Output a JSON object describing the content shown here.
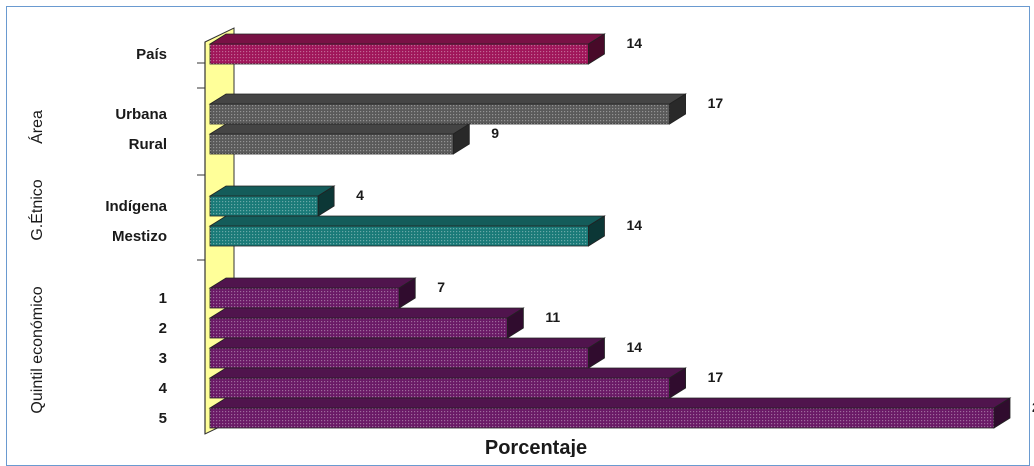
{
  "chart_data": {
    "type": "bar",
    "orientation": "horizontal",
    "style": "3d",
    "xlabel": "Porcentaje",
    "ylabel": "",
    "xlim": [
      0,
      29
    ],
    "grid": false,
    "groups": [
      {
        "label": "",
        "color": "#a0165a",
        "rows": [
          {
            "label": "País",
            "value": 14
          }
        ]
      },
      {
        "label": "Área",
        "color": "#5a5a5a",
        "rows": [
          {
            "label": "Urbana",
            "value": 17
          },
          {
            "label": "Rural",
            "value": 9
          }
        ]
      },
      {
        "label": "G.Étnico",
        "color": "#1a7a78",
        "rows": [
          {
            "label": "Indígena",
            "value": 4
          },
          {
            "label": "Mestizo",
            "value": 14
          }
        ]
      },
      {
        "label": "Quintil económico",
        "color": "#6a1a66",
        "rows": [
          {
            "label": "1",
            "value": 7
          },
          {
            "label": "2",
            "value": 11
          },
          {
            "label": "3",
            "value": 14
          },
          {
            "label": "4",
            "value": 17
          },
          {
            "label": "5",
            "value": 29
          }
        ]
      }
    ]
  }
}
